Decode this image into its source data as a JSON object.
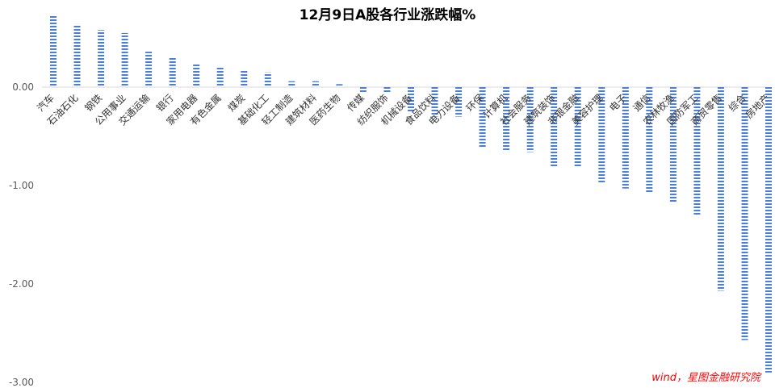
{
  "chart_data": {
    "type": "bar",
    "title": "12月9日A股各行业涨跌幅%",
    "source": "wind，星图金融研究院",
    "xlabel": "",
    "ylabel": "",
    "ylim": [
      -3.0,
      0.75
    ],
    "yticks": [
      0.0,
      -1.0,
      -2.0,
      -3.0
    ],
    "ytick_labels": [
      "0.00",
      "-1.00",
      "-2.00",
      "-3.00"
    ],
    "grid": false,
    "legend": "none",
    "bar_color": "#4a7fd9",
    "categories": [
      "汽车",
      "石油石化",
      "钢铁",
      "公用事业",
      "交通运输",
      "银行",
      "家用电器",
      "有色金属",
      "煤炭",
      "基础化工",
      "轻工制造",
      "建筑材料",
      "医药生物",
      "传媒",
      "纺织服饰",
      "机械设备",
      "食品饮料",
      "电力设备",
      "环保",
      "计算机",
      "社会服务",
      "建筑装饰",
      "非银金融",
      "美容护理",
      "电子",
      "通信",
      "农林牧渔",
      "国防军工",
      "商贸零售",
      "综合",
      "房地产"
    ],
    "values": [
      0.73,
      0.64,
      0.58,
      0.55,
      0.36,
      0.3,
      0.24,
      0.2,
      0.18,
      0.15,
      0.06,
      0.06,
      0.03,
      -0.05,
      -0.05,
      -0.25,
      -0.3,
      -0.3,
      -0.62,
      -0.64,
      -0.66,
      -0.82,
      -0.82,
      -0.98,
      -1.03,
      -1.07,
      -1.18,
      -1.31,
      -2.07,
      -2.57,
      -2.9
    ]
  }
}
